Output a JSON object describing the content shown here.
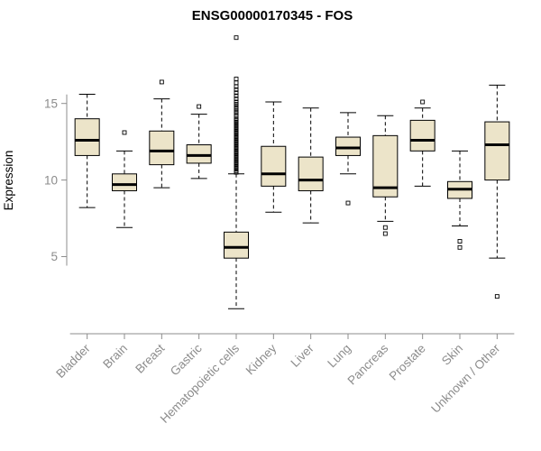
{
  "chart_data": {
    "type": "boxplot",
    "title": "ENSG00000170345 - FOS",
    "ylabel": "Expression",
    "yticks": [
      5,
      10,
      15
    ],
    "ylim": [
      1.2,
      19.4
    ],
    "grid": false,
    "categories": [
      "Bladder",
      "Brain",
      "Breast",
      "Gastric",
      "Hematopoietic cells",
      "Kidney",
      "Liver",
      "Lung",
      "Pancreas",
      "Prostate",
      "Skin",
      "Unknown / Other"
    ],
    "colors": {
      "box_fill": "#ece4c9",
      "box_stroke": "#000000",
      "median": "#000000",
      "whisker": "#000000",
      "axis": "#8c8c8c",
      "tick_label": "#8c8c8c",
      "title": "#000000"
    },
    "boxes": [
      {
        "category": "Bladder",
        "low": 8.2,
        "q1": 11.6,
        "median": 12.6,
        "q3": 14.0,
        "high": 15.6,
        "outliers": []
      },
      {
        "category": "Brain",
        "low": 6.9,
        "q1": 9.3,
        "median": 9.7,
        "q3": 10.4,
        "high": 11.9,
        "outliers": [
          13.1
        ]
      },
      {
        "category": "Breast",
        "low": 9.5,
        "q1": 11.0,
        "median": 11.9,
        "q3": 13.2,
        "high": 15.3,
        "outliers": [
          16.4
        ]
      },
      {
        "category": "Gastric",
        "low": 10.1,
        "q1": 11.1,
        "median": 11.6,
        "q3": 12.3,
        "high": 14.3,
        "outliers": [
          14.8
        ]
      },
      {
        "category": "Hematopoietic cells",
        "low": 1.6,
        "q1": 4.9,
        "median": 5.6,
        "q3": 6.6,
        "high": 10.4,
        "outliers": [
          10.5,
          10.6,
          10.7,
          10.8,
          10.9,
          11.0,
          11.1,
          11.2,
          11.3,
          11.4,
          11.5,
          11.6,
          11.7,
          11.8,
          11.9,
          12.0,
          12.1,
          12.2,
          12.3,
          12.4,
          12.5,
          12.6,
          12.7,
          12.8,
          12.9,
          13.0,
          13.1,
          13.2,
          13.3,
          13.4,
          13.5,
          13.6,
          13.7,
          13.8,
          13.9,
          14.0,
          14.2,
          14.35,
          14.5,
          14.65,
          14.8,
          14.95,
          15.1,
          15.3,
          15.5,
          15.7,
          15.9,
          16.1,
          16.35,
          16.6,
          19.3
        ]
      },
      {
        "category": "Kidney",
        "low": 7.9,
        "q1": 9.6,
        "median": 10.4,
        "q3": 12.2,
        "high": 15.1,
        "outliers": []
      },
      {
        "category": "Liver",
        "low": 7.2,
        "q1": 9.3,
        "median": 10.0,
        "q3": 11.5,
        "high": 14.7,
        "outliers": []
      },
      {
        "category": "Lung",
        "low": 10.4,
        "q1": 11.6,
        "median": 12.1,
        "q3": 12.8,
        "high": 14.4,
        "outliers": [
          8.5
        ]
      },
      {
        "category": "Pancreas",
        "low": 7.3,
        "q1": 8.9,
        "median": 9.5,
        "q3": 12.9,
        "high": 14.2,
        "outliers": [
          6.9,
          6.5
        ]
      },
      {
        "category": "Prostate",
        "low": 9.6,
        "q1": 11.9,
        "median": 12.6,
        "q3": 13.9,
        "high": 14.7,
        "outliers": [
          15.1
        ]
      },
      {
        "category": "Skin",
        "low": 7.0,
        "q1": 8.8,
        "median": 9.4,
        "q3": 9.9,
        "high": 11.9,
        "outliers": [
          6.0,
          5.6
        ]
      },
      {
        "category": "Unknown / Other",
        "low": 4.9,
        "q1": 10.0,
        "median": 12.3,
        "q3": 13.8,
        "high": 16.2,
        "outliers": [
          2.4
        ]
      }
    ]
  }
}
